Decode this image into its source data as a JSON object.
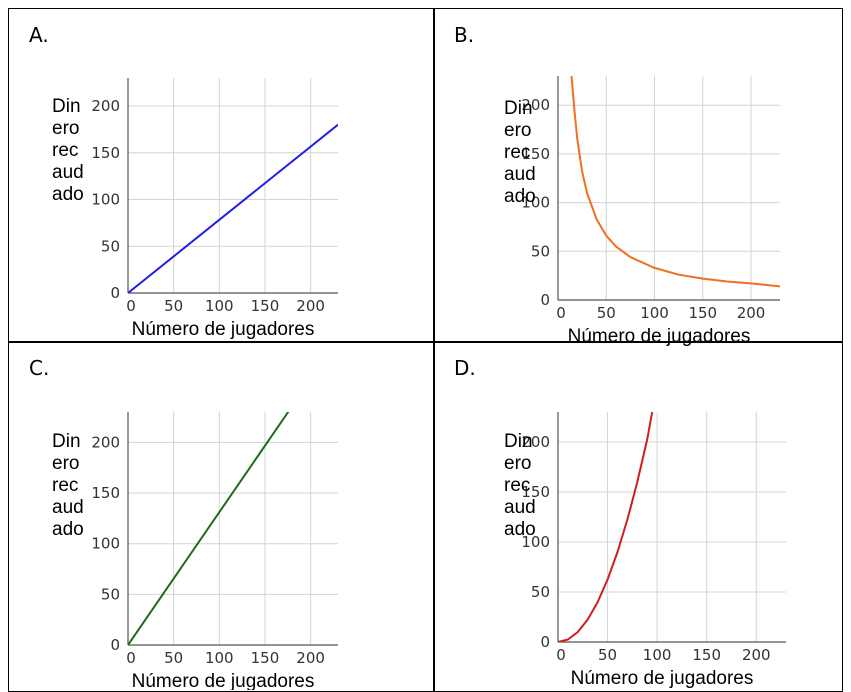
{
  "panels": [
    {
      "letter": "A."
    },
    {
      "letter": "B."
    },
    {
      "letter": "C."
    },
    {
      "letter": "D."
    }
  ],
  "chart_data": [
    {
      "type": "line",
      "panel": "A.",
      "xlabel": "Número de jugadores",
      "ylabel": "Dinero recaudado",
      "xlim": [
        0,
        230
      ],
      "ylim": [
        0,
        230
      ],
      "xticks": [
        0,
        50,
        100,
        150,
        200
      ],
      "yticks": [
        0,
        50,
        100,
        150,
        200
      ],
      "grid": true,
      "color": "#1f1fe6",
      "series": [
        {
          "x": [
            0,
            230
          ],
          "y": [
            0,
            180
          ]
        }
      ]
    },
    {
      "type": "line",
      "panel": "B.",
      "xlabel": "Número de jugadores",
      "ylabel": "Dinero recaudado",
      "xlim": [
        0,
        230
      ],
      "ylim": [
        0,
        230
      ],
      "xticks": [
        0,
        50,
        100,
        150,
        200
      ],
      "yticks": [
        0,
        50,
        100,
        150,
        200
      ],
      "grid": true,
      "color": "#f07020",
      "series": [
        {
          "x": [
            14,
            17,
            20,
            25,
            30,
            40,
            50,
            60,
            75,
            100,
            125,
            150,
            175,
            200,
            230
          ],
          "y": [
            230,
            195,
            165,
            132,
            110,
            83,
            66,
            55,
            44,
            33,
            26,
            22,
            19,
            17,
            14
          ]
        }
      ]
    },
    {
      "type": "line",
      "panel": "C.",
      "xlabel": "Número de jugadores",
      "ylabel": "Dinero recaudado",
      "xlim": [
        0,
        230
      ],
      "ylim": [
        0,
        230
      ],
      "xticks": [
        0,
        50,
        100,
        150,
        200
      ],
      "yticks": [
        0,
        50,
        100,
        150,
        200
      ],
      "grid": true,
      "color": "#1a6e1a",
      "series": [
        {
          "x": [
            0,
            183
          ],
          "y": [
            0,
            240
          ]
        }
      ]
    },
    {
      "type": "line",
      "panel": "D.",
      "xlabel": "Número de jugadores",
      "ylabel": "Dinero recaudado",
      "xlim": [
        0,
        230
      ],
      "ylim": [
        0,
        230
      ],
      "xticks": [
        0,
        50,
        100,
        150,
        200
      ],
      "yticks": [
        0,
        50,
        100,
        150,
        200
      ],
      "grid": true,
      "color": "#cc1f1f",
      "series": [
        {
          "x": [
            0,
            10,
            20,
            30,
            40,
            50,
            60,
            70,
            80,
            90,
            95
          ],
          "y": [
            0,
            2.5,
            10,
            22.5,
            40,
            62.5,
            90,
            122.5,
            160,
            202.5,
            230
          ]
        }
      ]
    }
  ]
}
